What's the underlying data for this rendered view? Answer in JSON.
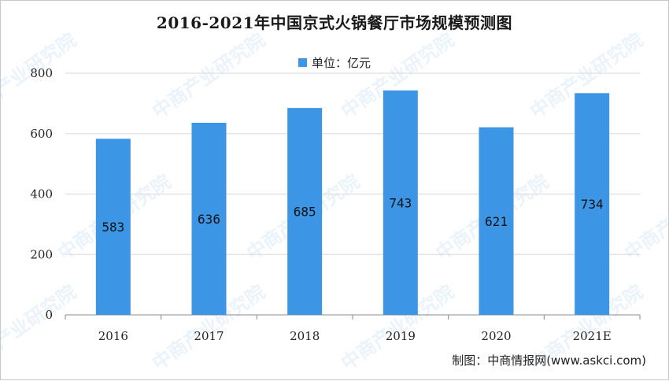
{
  "title": "2016-2021年中国京式火锅餐厅市场规模预测图",
  "legend": {
    "label": "单位：亿元"
  },
  "source": "制图：中商情报网(www.askci.com)",
  "watermark": "中商产业研究院",
  "colors": {
    "bar": "#3d95e5",
    "grid": "#d9d9d9",
    "axis": "#888888"
  },
  "chart_data": {
    "type": "bar",
    "title": "2016-2021年中国京式火锅餐厅市场规模预测图",
    "categories": [
      "2016",
      "2017",
      "2018",
      "2019",
      "2020",
      "2021E"
    ],
    "values": [
      583,
      636,
      685,
      743,
      621,
      734
    ],
    "data_labels": [
      "583",
      "636",
      "685",
      "743",
      "621",
      "734"
    ],
    "ylim": [
      0,
      800
    ],
    "yticks": [
      0,
      200,
      400,
      600,
      800
    ],
    "legend": "单位：亿元",
    "legend_position": "top",
    "grid": true
  }
}
